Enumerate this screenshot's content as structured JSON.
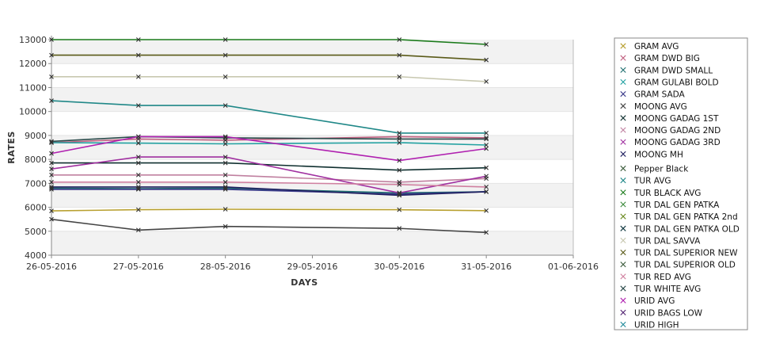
{
  "chart_data": {
    "type": "line",
    "title": "",
    "xlabel": "DAYS",
    "ylabel": "RATES",
    "ylim": [
      4000,
      13000
    ],
    "xlim": [
      "26-05-2016",
      "01-06-2016"
    ],
    "yticks": [
      4000,
      5000,
      6000,
      7000,
      8000,
      9000,
      10000,
      11000,
      12000,
      13000
    ],
    "xticks": [
      "26-05-2016",
      "27-05-2016",
      "28-05-2016",
      "29-05-2016",
      "30-05-2016",
      "31-05-2016",
      "01-06-2016"
    ],
    "x": [
      "26-05-2016",
      "27-05-2016",
      "28-05-2016",
      "30-05-2016",
      "31-05-2016"
    ],
    "grid": "horizontal bands",
    "legend_position": "right",
    "series": [
      {
        "name": "GRAM AVG",
        "color": "#b8a030",
        "values": [
          5850,
          5900,
          5920,
          5900,
          5860
        ]
      },
      {
        "name": "GRAM DWD BIG",
        "color": "#c06080",
        "values": [
          8700,
          8850,
          8800,
          8950,
          8900
        ]
      },
      {
        "name": "GRAM DWD SMALL",
        "color": "#1f6f6f",
        "values": [
          6800,
          6780,
          6800,
          6600,
          6650
        ]
      },
      {
        "name": "GRAM GULABI BOLD",
        "color": "#20a0a0",
        "values": [
          8700,
          8680,
          8650,
          8700,
          8600
        ]
      },
      {
        "name": "GRAM SADA",
        "color": "#3a3a8a",
        "values": [
          6750,
          6750,
          6750,
          6550,
          6650
        ]
      },
      {
        "name": "MOONG AVG",
        "color": "#444444",
        "values": [
          5500,
          5050,
          5200,
          5120,
          4950
        ]
      },
      {
        "name": "MOONG GADAG 1ST",
        "color": "#103030",
        "values": [
          7850,
          7850,
          7850,
          7550,
          7650
        ]
      },
      {
        "name": "MOONG GADAG 2ND",
        "color": "#c080a0",
        "values": [
          7350,
          7350,
          7350,
          7050,
          7200
        ]
      },
      {
        "name": "MOONG GADAG 3RD",
        "color": "#a030a0",
        "values": [
          7600,
          8100,
          8100,
          6600,
          7300
        ]
      },
      {
        "name": "MOONG MH",
        "color": "#202060",
        "values": [
          6850,
          6850,
          6850,
          6500,
          6650
        ]
      },
      {
        "name": "Pepper Black",
        "color": "#406040",
        "values": [
          null,
          null,
          null,
          null,
          null
        ]
      },
      {
        "name": "TUR AVG",
        "color": "#208888",
        "values": [
          10450,
          10250,
          10250,
          9100,
          9100
        ]
      },
      {
        "name": "TUR BLACK AVG",
        "color": "#1a7a1a",
        "values": [
          13000,
          13000,
          13000,
          13000,
          12800
        ]
      },
      {
        "name": "TUR DAL GEN PATKA",
        "color": "#3a8a3a",
        "values": [
          null,
          null,
          null,
          null,
          null
        ]
      },
      {
        "name": "TUR DAL GEN PATKA 2nd",
        "color": "#6a8a20",
        "values": [
          null,
          null,
          null,
          null,
          null
        ]
      },
      {
        "name": "TUR DAL GEN PATKA OLD",
        "color": "#103840",
        "values": [
          null,
          null,
          null,
          null,
          null
        ]
      },
      {
        "name": "TUR DAL SAVVA",
        "color": "#c8c8b0",
        "values": [
          11450,
          11450,
          11450,
          11450,
          11250
        ]
      },
      {
        "name": "TUR DAL SUPERIOR NEW",
        "color": "#5a5a18",
        "values": [
          12350,
          12350,
          12350,
          12350,
          12150
        ]
      },
      {
        "name": "TUR DAL SUPERIOR OLD",
        "color": "#3a5a3a",
        "values": [
          null,
          null,
          null,
          null,
          null
        ]
      },
      {
        "name": "TUR RED AVG",
        "color": "#d080a0",
        "values": [
          7050,
          7050,
          7050,
          6950,
          6850
        ]
      },
      {
        "name": "TUR WHITE AVG",
        "color": "#2a4a4a",
        "values": [
          8750,
          8950,
          8900,
          8850,
          8850
        ]
      },
      {
        "name": "URID AVG",
        "color": "#b020b0",
        "values": [
          8250,
          8950,
          8950,
          7950,
          8450
        ]
      },
      {
        "name": "URID BAGS LOW",
        "color": "#502070",
        "values": [
          null,
          null,
          null,
          null,
          null
        ]
      },
      {
        "name": "URID HIGH",
        "color": "#208a9a",
        "values": [
          null,
          null,
          null,
          null,
          null
        ]
      }
    ]
  }
}
